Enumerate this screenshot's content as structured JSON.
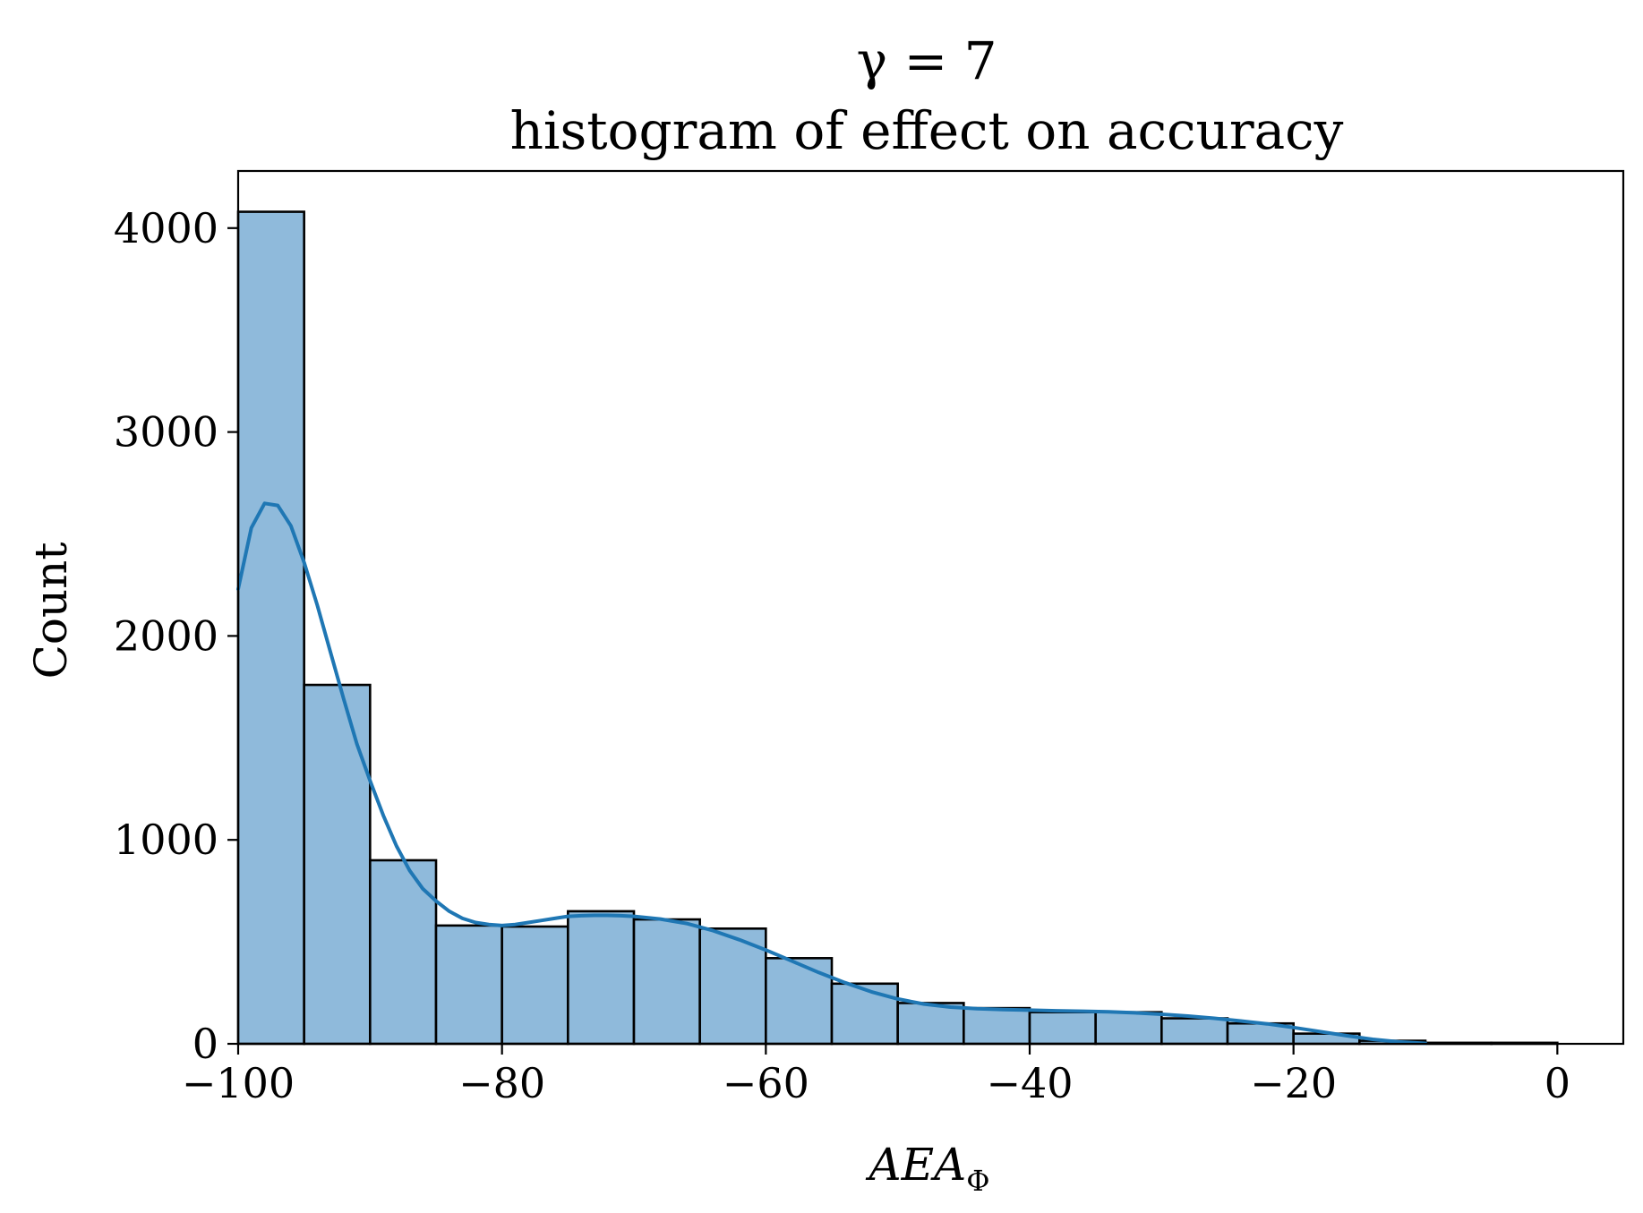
{
  "chart_data": {
    "type": "bar",
    "title": "γ = 7",
    "subtitle": "histogram of effect on accuracy",
    "xlabel": "AEA",
    "xlabel_subscript": "Φ",
    "ylabel": "Count",
    "xlim": [
      -100,
      5
    ],
    "ylim": [
      0,
      4280
    ],
    "x_ticks": [
      -100,
      -80,
      -60,
      -40,
      -20,
      0
    ],
    "x_tick_labels": [
      "−100",
      "−80",
      "−60",
      "−40",
      "−20",
      "0"
    ],
    "y_ticks": [
      0,
      1000,
      2000,
      3000,
      4000
    ],
    "y_tick_labels": [
      "0",
      "1000",
      "2000",
      "3000",
      "4000"
    ],
    "grid": false,
    "bin_width": 5,
    "bins": [
      {
        "start": -100,
        "end": -95,
        "count": 4080
      },
      {
        "start": -95,
        "end": -90,
        "count": 1760
      },
      {
        "start": -90,
        "end": -85,
        "count": 900
      },
      {
        "start": -85,
        "end": -80,
        "count": 580
      },
      {
        "start": -80,
        "end": -75,
        "count": 575
      },
      {
        "start": -75,
        "end": -70,
        "count": 650
      },
      {
        "start": -70,
        "end": -65,
        "count": 610
      },
      {
        "start": -65,
        "end": -60,
        "count": 565
      },
      {
        "start": -60,
        "end": -55,
        "count": 420
      },
      {
        "start": -55,
        "end": -50,
        "count": 295
      },
      {
        "start": -50,
        "end": -45,
        "count": 200
      },
      {
        "start": -45,
        "end": -40,
        "count": 175
      },
      {
        "start": -40,
        "end": -35,
        "count": 155
      },
      {
        "start": -35,
        "end": -30,
        "count": 155
      },
      {
        "start": -30,
        "end": -25,
        "count": 125
      },
      {
        "start": -25,
        "end": -20,
        "count": 100
      },
      {
        "start": -20,
        "end": -15,
        "count": 50
      },
      {
        "start": -15,
        "end": -10,
        "count": 15
      },
      {
        "start": -10,
        "end": -5,
        "count": 5
      },
      {
        "start": -5,
        "end": 0,
        "count": 5
      }
    ],
    "kde": {
      "x": [
        -100,
        -99,
        -98,
        -97,
        -96,
        -95,
        -94,
        -93,
        -92,
        -91,
        -90,
        -89,
        -88,
        -87,
        -86,
        -85,
        -84,
        -83,
        -82,
        -81,
        -80,
        -79,
        -78,
        -77,
        -76,
        -75,
        -74,
        -73,
        -72,
        -71,
        -70,
        -68,
        -66,
        -64,
        -62,
        -60,
        -58,
        -56,
        -54,
        -52,
        -50,
        -48,
        -46,
        -44,
        -42,
        -40,
        -38,
        -36,
        -34,
        -32,
        -30,
        -28,
        -26,
        -24,
        -22,
        -20,
        -18,
        -16,
        -14,
        -12,
        -10
      ],
      "y": [
        2230,
        2530,
        2650,
        2640,
        2540,
        2360,
        2150,
        1920,
        1690,
        1470,
        1290,
        1120,
        970,
        850,
        760,
        700,
        650,
        615,
        595,
        585,
        580,
        585,
        595,
        605,
        615,
        625,
        628,
        630,
        630,
        628,
        625,
        612,
        590,
        555,
        510,
        460,
        405,
        350,
        300,
        255,
        220,
        195,
        180,
        172,
        168,
        165,
        162,
        160,
        157,
        152,
        145,
        136,
        125,
        112,
        98,
        80,
        60,
        40,
        22,
        9,
        2
      ]
    },
    "colors": {
      "bar_fill": "#8fbadb",
      "bar_edge": "#000000",
      "kde_line": "#1f77b4"
    }
  }
}
